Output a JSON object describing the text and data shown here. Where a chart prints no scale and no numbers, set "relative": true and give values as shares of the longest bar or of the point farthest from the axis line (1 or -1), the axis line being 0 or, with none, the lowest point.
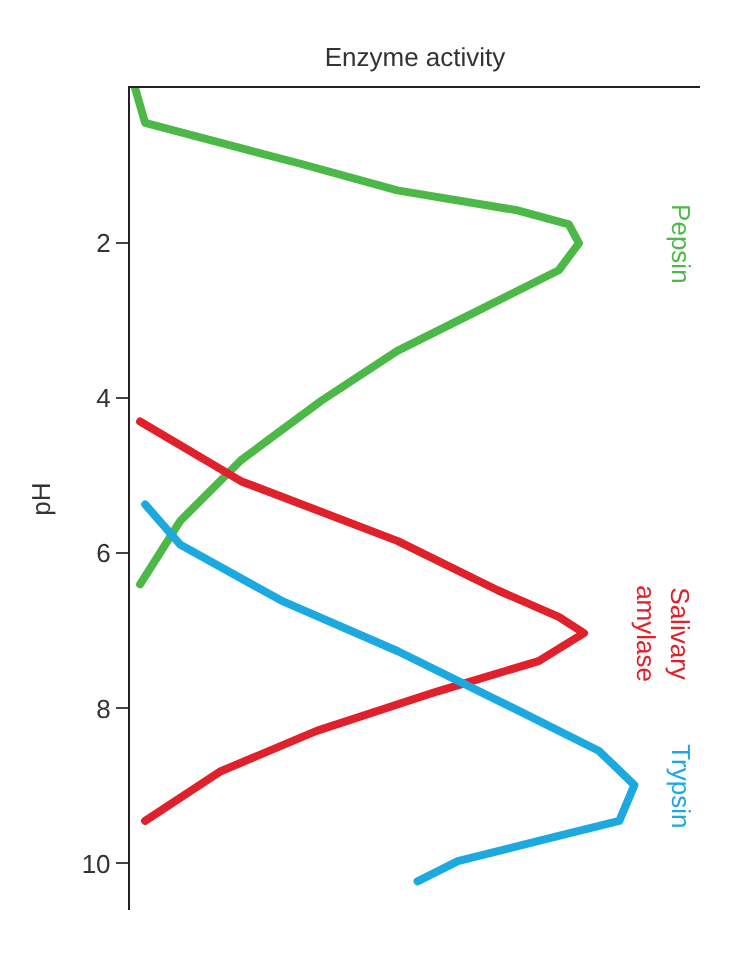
{
  "chart_data": {
    "type": "line",
    "orientation": "horizontal",
    "xlabel": "Enzyme activity",
    "ylabel": "pH",
    "relative": true,
    "ylim": [
      10.6,
      0
    ],
    "yticks": [
      2,
      4,
      6,
      8,
      10
    ],
    "tick_labels": "y",
    "legend": false,
    "marker": "none",
    "line_style": "solid",
    "series": [
      {
        "name": "Pepsin",
        "color": "#4cb848",
        "values": [
          0.01,
          0.03,
          0.34,
          0.53,
          0.77,
          0.87,
          0.89,
          0.85,
          0.69,
          0.53,
          0.38,
          0.22,
          0.1,
          0.02
        ],
        "x": [
          0,
          0.45,
          0.98,
          1.32,
          1.58,
          1.76,
          2.0,
          2.35,
          2.87,
          3.39,
          4.03,
          4.8,
          5.58,
          6.4
        ]
      },
      {
        "name": "Salivary\namylase",
        "color": "#e0202a",
        "values": [
          0.02,
          0.22,
          0.53,
          0.73,
          0.85,
          0.9,
          0.81,
          0.61,
          0.37,
          0.18,
          0.03
        ],
        "x": [
          4.3,
          5.07,
          5.84,
          6.48,
          6.82,
          7.03,
          7.39,
          7.78,
          8.29,
          8.81,
          9.45
        ]
      },
      {
        "name": "Trypsin",
        "color": "#1ba9e0",
        "values": [
          0.03,
          0.1,
          0.3,
          0.53,
          0.77,
          0.93,
          1.0,
          0.97,
          0.81,
          0.65,
          0.57
        ],
        "x": [
          5.37,
          5.89,
          6.61,
          7.26,
          8.03,
          8.55,
          8.99,
          9.45,
          9.71,
          9.97,
          10.23
        ]
      }
    ]
  }
}
